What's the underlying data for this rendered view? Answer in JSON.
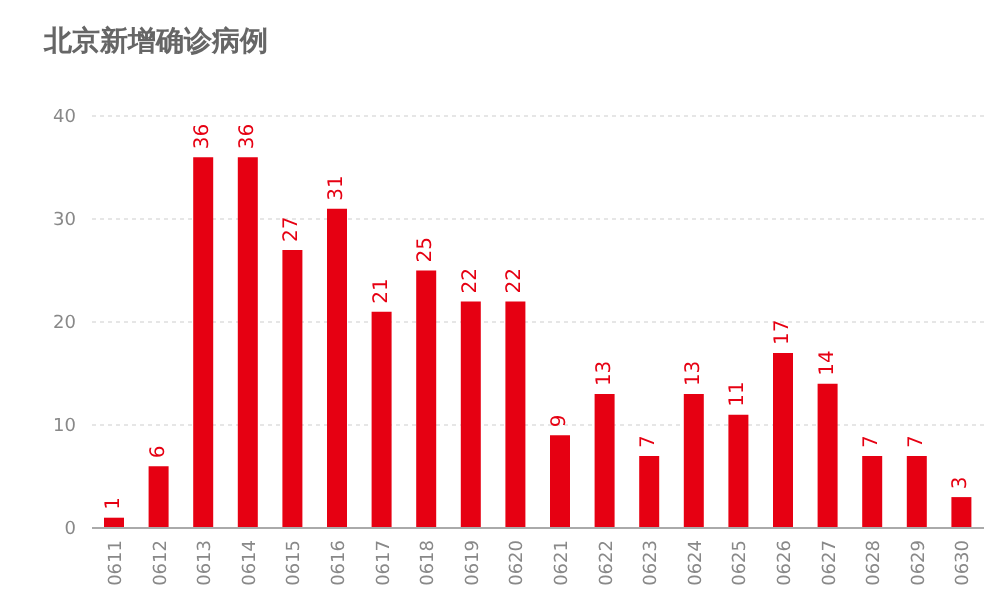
{
  "chart_data": {
    "type": "bar",
    "title": "北京新增确诊病例",
    "categories": [
      "0611",
      "0612",
      "0613",
      "0614",
      "0615",
      "0616",
      "0617",
      "0618",
      "0619",
      "0620",
      "0621",
      "0622",
      "0623",
      "0624",
      "0625",
      "0626",
      "0627",
      "0628",
      "0629",
      "0630"
    ],
    "values": [
      1,
      6,
      36,
      36,
      27,
      31,
      21,
      25,
      22,
      22,
      9,
      13,
      7,
      13,
      11,
      17,
      14,
      7,
      7,
      3
    ],
    "color": "#e60012",
    "ylim": [
      0,
      40
    ],
    "yticks": [
      0,
      10,
      20,
      30,
      40
    ],
    "grid": "y",
    "data_labels": true
  }
}
